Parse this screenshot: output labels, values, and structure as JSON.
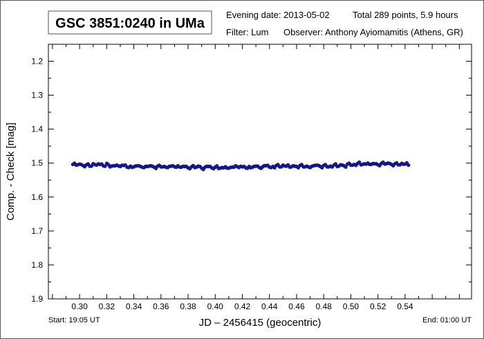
{
  "header": {
    "title": "GSC 3851:0240 in UMa",
    "evening_date": "Evening date: 2013-05-02",
    "total": "Total 289 points, 5.9 hours",
    "filter": "Filter: Lum",
    "observer": "Observer: Anthony Ayiomamitis (Athens, GR)"
  },
  "footer": {
    "start": "Start: 19:05 UT",
    "end": "End: 01:00 UT"
  },
  "chart_data": {
    "type": "scatter",
    "title": "GSC 3851:0240 in UMa",
    "xlabel": "JD – 2456415  (geocentric)",
    "ylabel": "Comp. - Check [mag]",
    "xlim": [
      0.277,
      0.589
    ],
    "ylim": [
      1.15,
      1.9
    ],
    "y_inverted": true,
    "grid": false,
    "marker_color": "#1a1aa0",
    "xticks": [
      "0.30",
      "0.32",
      "0.34",
      "0.36",
      "0.38",
      "0.40",
      "0.42",
      "0.44",
      "0.46",
      "0.48",
      "0.50",
      "0.52",
      "0.54"
    ],
    "yticks": [
      "1.2",
      "1.3",
      "1.4",
      "1.5",
      "1.6",
      "1.7",
      "1.8",
      "1.9"
    ],
    "series": [
      {
        "name": "Comp - Check",
        "x_start": 0.295,
        "x_step": 0.0025,
        "y": [
          1.504,
          1.506,
          1.503,
          1.507,
          1.505,
          1.509,
          1.502,
          1.506,
          1.504,
          1.508,
          1.501,
          1.511,
          1.508,
          1.506,
          1.51,
          1.507,
          1.512,
          1.509,
          1.511,
          1.508,
          1.51,
          1.513,
          1.51,
          1.508,
          1.512,
          1.509,
          1.511,
          1.51,
          1.513,
          1.509,
          1.511,
          1.508,
          1.512,
          1.51,
          1.514,
          1.511,
          1.513,
          1.509,
          1.515,
          1.512,
          1.51,
          1.514,
          1.512,
          1.516,
          1.513,
          1.511,
          1.515,
          1.512,
          1.508,
          1.513,
          1.511,
          1.514,
          1.51,
          1.512,
          1.509,
          1.513,
          1.511,
          1.508,
          1.512,
          1.51,
          1.507,
          1.511,
          1.506,
          1.509,
          1.512,
          1.508,
          1.51,
          1.507,
          1.511,
          1.509,
          1.513,
          1.508,
          1.506,
          1.51,
          1.507,
          1.511,
          1.509,
          1.506,
          1.51,
          1.505,
          1.508,
          1.503,
          1.506,
          1.504,
          1.501,
          1.505,
          1.502,
          1.5,
          1.504,
          1.502,
          1.505,
          1.501,
          1.503,
          1.5,
          1.504,
          1.502,
          1.505,
          1.501,
          1.503,
          1.506
        ]
      }
    ]
  }
}
